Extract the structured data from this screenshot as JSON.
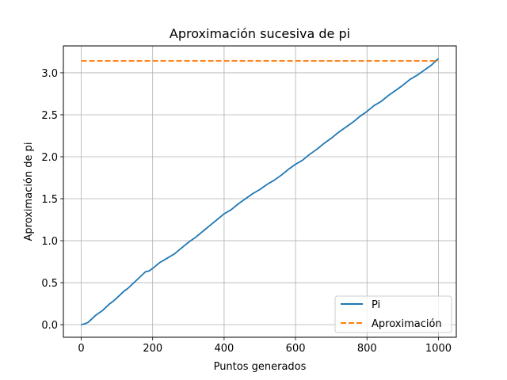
{
  "chart_data": {
    "type": "line",
    "title": "Aproximación sucesiva de pi",
    "xlabel": "Puntos generados",
    "ylabel": "Aproximación de pi",
    "xlim": [
      -50,
      1050
    ],
    "ylim": [
      -0.15,
      3.32
    ],
    "xticks": [
      0,
      200,
      400,
      600,
      800,
      1000
    ],
    "xtick_labels": [
      "0",
      "200",
      "400",
      "600",
      "800",
      "1000"
    ],
    "yticks": [
      0.0,
      0.5,
      1.0,
      1.5,
      2.0,
      2.5,
      3.0
    ],
    "ytick_labels": [
      "0.0",
      "0.5",
      "1.0",
      "1.5",
      "2.0",
      "2.5",
      "3.0"
    ],
    "grid": true,
    "legend_position": "lower-right",
    "series": [
      {
        "name": "Pi",
        "color": "#1f77b4",
        "style": "solid",
        "x": [
          0,
          10,
          20,
          30,
          40,
          50,
          60,
          70,
          80,
          90,
          100,
          110,
          120,
          130,
          140,
          150,
          160,
          170,
          180,
          190,
          200,
          220,
          240,
          260,
          280,
          300,
          320,
          340,
          360,
          380,
          400,
          420,
          440,
          460,
          480,
          500,
          520,
          540,
          560,
          580,
          600,
          620,
          640,
          660,
          680,
          700,
          720,
          740,
          760,
          780,
          800,
          820,
          840,
          860,
          880,
          900,
          920,
          940,
          960,
          980,
          1000
        ],
        "y": [
          0.0,
          0.01,
          0.03,
          0.07,
          0.11,
          0.14,
          0.17,
          0.21,
          0.25,
          0.28,
          0.32,
          0.36,
          0.4,
          0.43,
          0.47,
          0.51,
          0.55,
          0.59,
          0.63,
          0.64,
          0.67,
          0.74,
          0.79,
          0.84,
          0.91,
          0.98,
          1.04,
          1.11,
          1.18,
          1.25,
          1.32,
          1.37,
          1.44,
          1.5,
          1.56,
          1.61,
          1.67,
          1.72,
          1.78,
          1.85,
          1.91,
          1.96,
          2.03,
          2.09,
          2.16,
          2.22,
          2.29,
          2.35,
          2.41,
          2.48,
          2.54,
          2.61,
          2.66,
          2.73,
          2.79,
          2.85,
          2.92,
          2.97,
          3.03,
          3.09,
          3.17
        ]
      },
      {
        "name": "Aproximación",
        "color": "#ff7f0e",
        "style": "dashed",
        "x": [
          0,
          1000
        ],
        "y": [
          3.14159,
          3.14159
        ]
      }
    ]
  }
}
